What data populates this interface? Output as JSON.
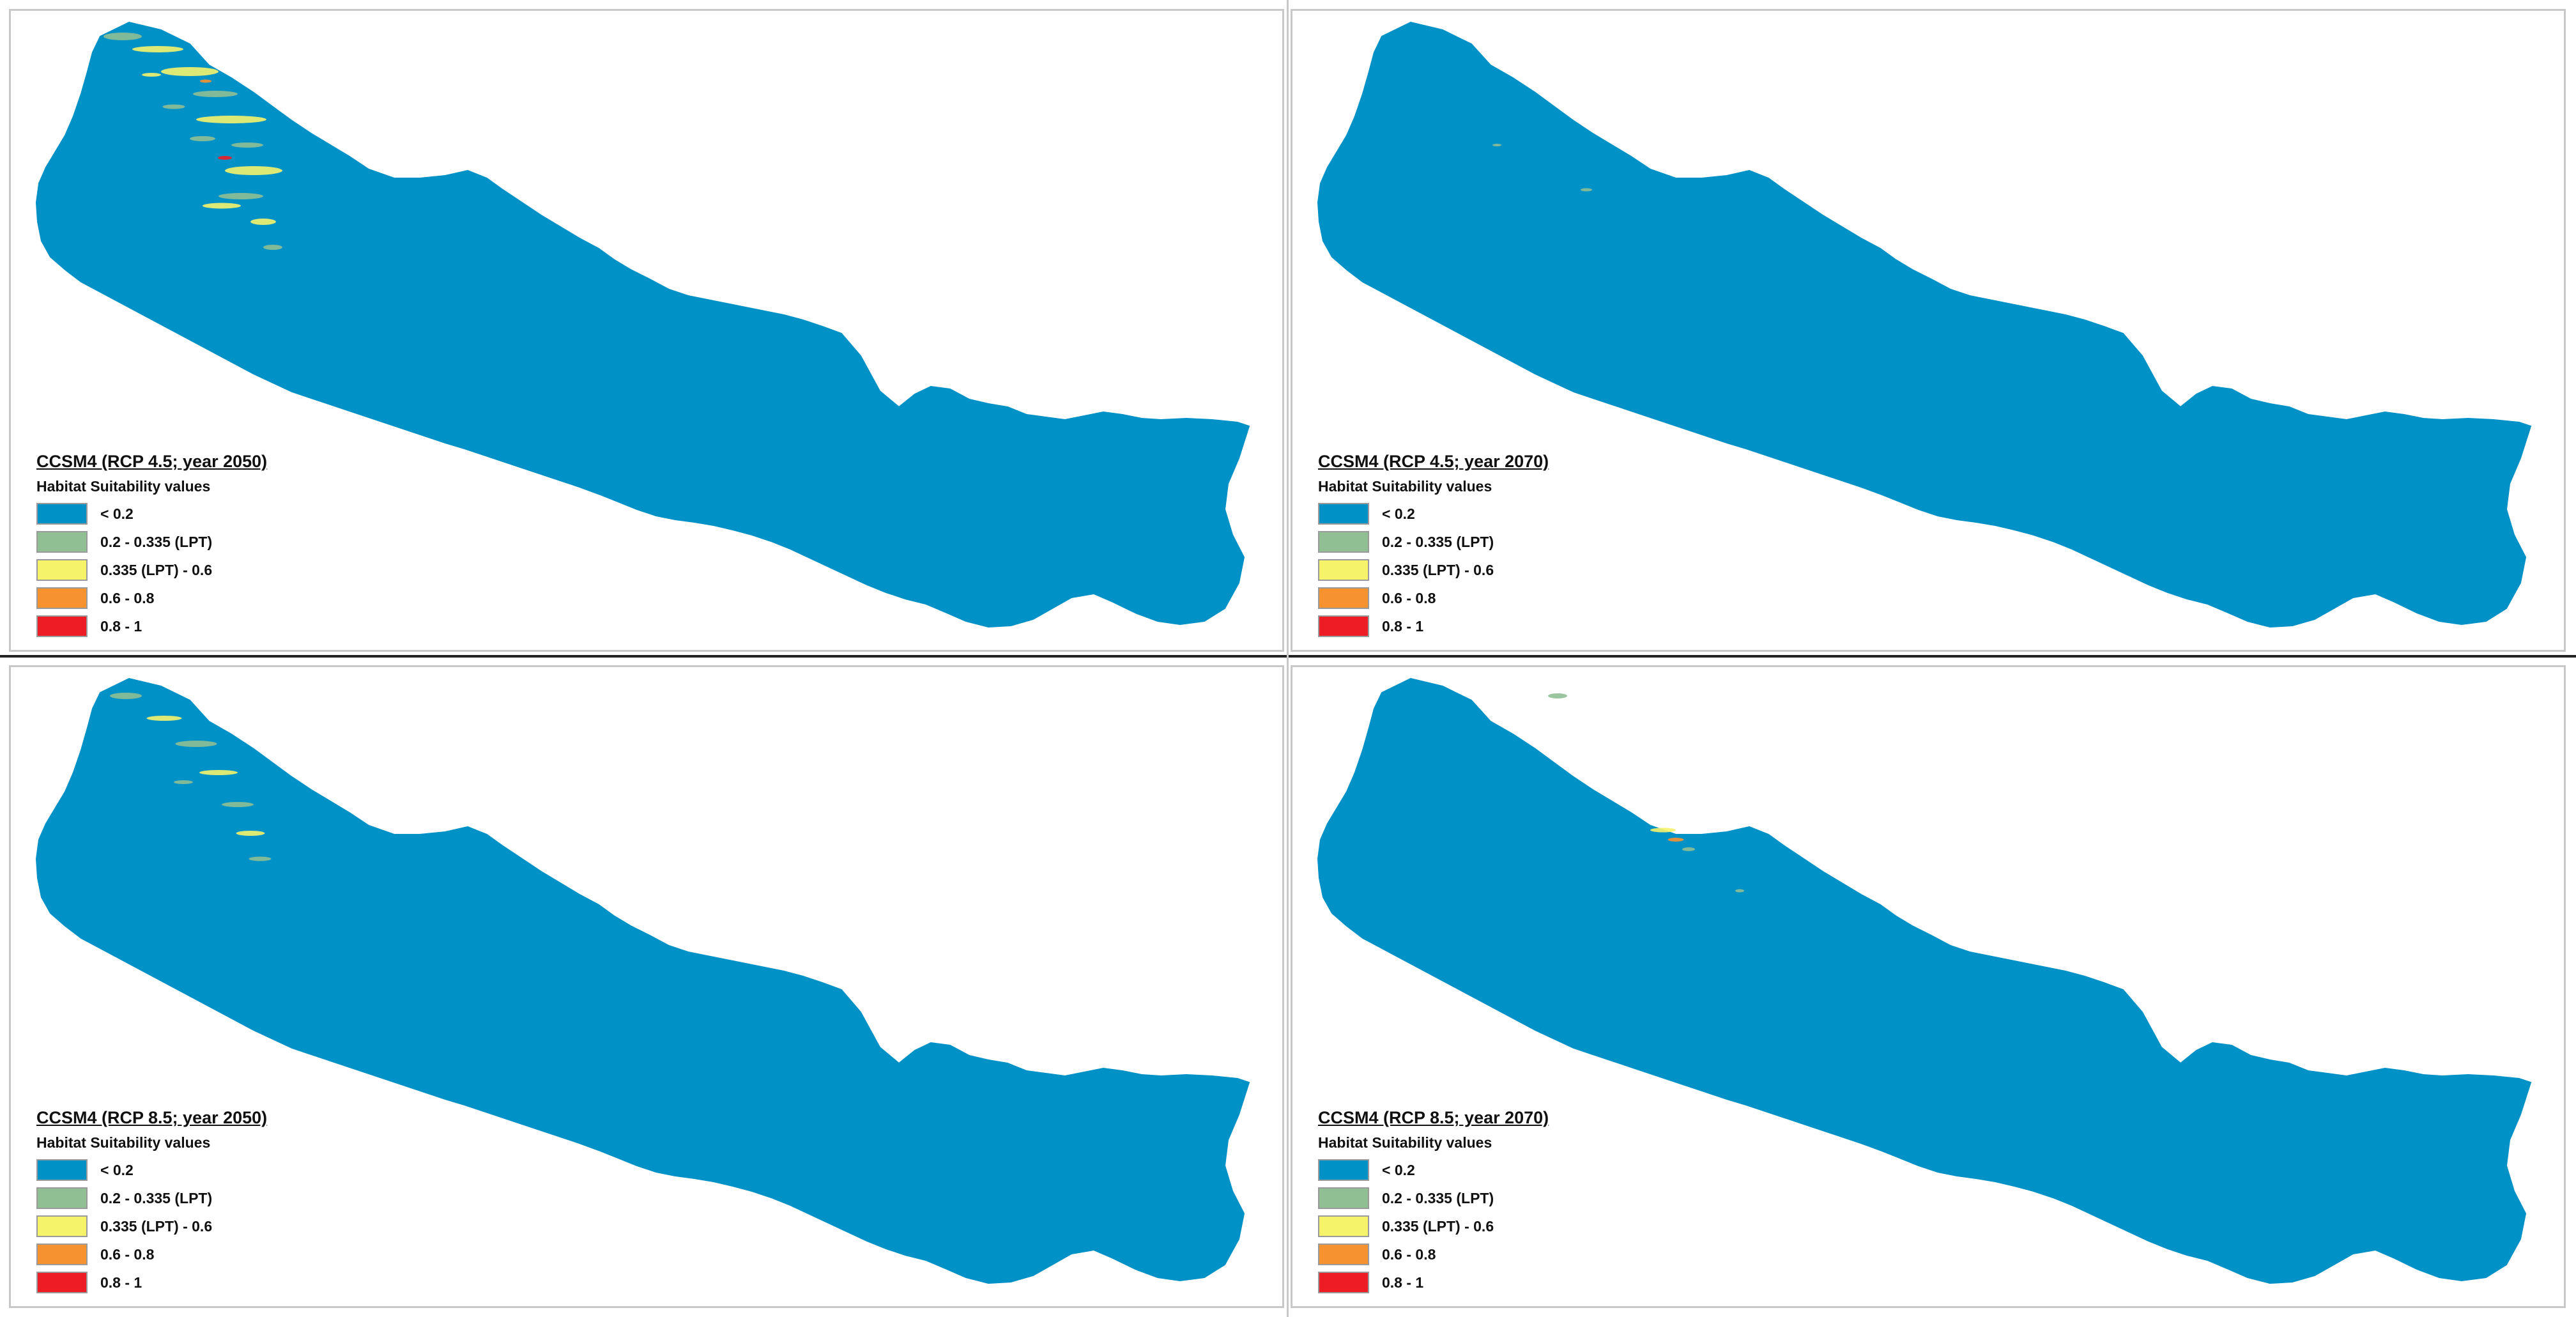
{
  "colors": {
    "base": "#0091c7",
    "low_green": "#8fbf93",
    "yellow": "#f4f36a",
    "orange": "#f6922f",
    "red": "#ee1c24"
  },
  "legend": {
    "subtitle": "Habitat Suitability values",
    "classes": [
      {
        "label": "< 0.2",
        "color": "#0091c7"
      },
      {
        "label": "0.2 - 0.335 (LPT)",
        "color": "#8fbf93"
      },
      {
        "label": "0.335 (LPT) - 0.6",
        "color": "#f4f36a"
      },
      {
        "label": "0.6 - 0.8",
        "color": "#f6922f"
      },
      {
        "label": "0.8 - 1",
        "color": "#ee1c24"
      }
    ]
  },
  "panels": [
    {
      "title": "CCSM4 (RCP 4.5; year 2050)",
      "suitability": "high"
    },
    {
      "title": "CCSM4 (RCP 4.5; year 2070)",
      "suitability": "trace"
    },
    {
      "title": "CCSM4 (RCP 8.5; year 2050)",
      "suitability": "medium"
    },
    {
      "title": "CCSM4 (RCP 8.5; year 2070)",
      "suitability": "low"
    }
  ]
}
